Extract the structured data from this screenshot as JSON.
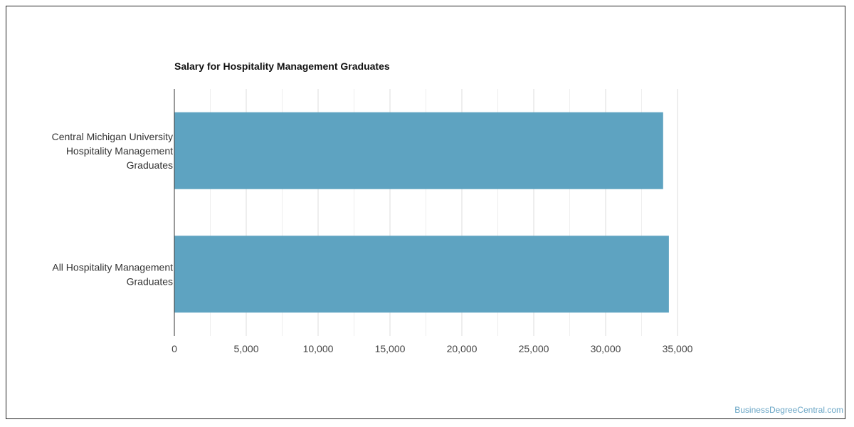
{
  "chart_data": {
    "type": "bar",
    "orientation": "horizontal",
    "title": "Salary for Hospitality Management Graduates",
    "categories": [
      [
        "Central Michigan University",
        "Hospitality Management",
        "Graduates"
      ],
      [
        "All Hospitality Management",
        "Graduates"
      ]
    ],
    "values": [
      34000,
      34400
    ],
    "xlim": [
      0,
      35000
    ],
    "xticks": [
      "0",
      "5,000",
      "10,000",
      "15,000",
      "20,000",
      "25,000",
      "30,000",
      "35,000"
    ],
    "xtick_values": [
      0,
      5000,
      10000,
      15000,
      20000,
      25000,
      30000,
      35000
    ],
    "minor_grid": true,
    "bar_color": "#5ea3c1",
    "grid_color": "#dddddd"
  },
  "footer": {
    "source": "BusinessDegreeCentral.com"
  }
}
